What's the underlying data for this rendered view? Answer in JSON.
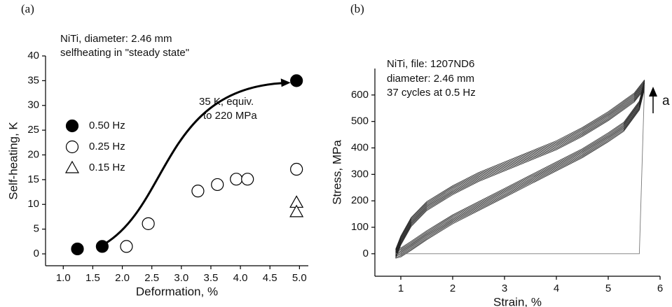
{
  "chart_data": [
    {
      "type": "scatter",
      "label": "(a)",
      "annotations": [
        "NiTi, diameter: 2.46 mm",
        "selfheating in \"steady state\"",
        "35 K, equiv.",
        "to 220 MPa"
      ],
      "x_label": "Deformation, %",
      "y_label": "Self-heating, K",
      "xlim": [
        0.7,
        5.15
      ],
      "ylim": [
        -2.4,
        40
      ],
      "xticks": [
        {
          "value": 1,
          "label": "1.0"
        },
        {
          "value": 1.5,
          "label": "1.5"
        },
        {
          "value": 2,
          "label": "2.0"
        },
        {
          "value": 2.5,
          "label": "2.5"
        },
        {
          "value": 3,
          "label": "3.0"
        },
        {
          "value": 3.5,
          "label": "3.5"
        },
        {
          "value": 4,
          "label": "4.0"
        },
        {
          "value": 4.5,
          "label": "4.5"
        },
        {
          "value": 5,
          "label": "5.0"
        }
      ],
      "yticks": [
        0,
        5,
        10,
        15,
        20,
        25,
        30,
        35,
        40
      ],
      "series": [
        {
          "name": "0.50 Hz",
          "marker": "circle-filled",
          "color": "#000",
          "x": [
            1.24,
            1.66,
            4.95
          ],
          "values": [
            1,
            1.5,
            35
          ]
        },
        {
          "name": "0.25 Hz",
          "marker": "circle-open",
          "color": "#000",
          "x": [
            2.07,
            2.44,
            3.28,
            3.61,
            3.93,
            4.12,
            4.95
          ],
          "values": [
            1.5,
            6.1,
            12.7,
            14,
            15.1,
            15.1,
            17.1
          ]
        },
        {
          "name": "0.15 Hz",
          "marker": "triangle-open",
          "color": "#000",
          "x": [
            4.95,
            4.95
          ],
          "values": [
            10.4,
            8.5
          ]
        }
      ]
    },
    {
      "type": "line",
      "label": "(b)",
      "annotations": [
        "NiTi, file: 1207ND6",
        "diameter: 2.46 mm",
        "37 cycles at 0.5 Hz",
        "a"
      ],
      "x_label": "Strain, %",
      "y_label": "Stress, MPa",
      "xlim": [
        0.5,
        6
      ],
      "ylim": [
        -85,
        700
      ],
      "xticks": [
        1,
        2,
        3,
        4,
        5,
        6
      ],
      "yticks": [
        0,
        100,
        200,
        300,
        400,
        500,
        600
      ],
      "series": [
        {
          "color": "#222",
          "x": [
            0.9,
            1.0,
            1.2,
            1.5,
            2,
            2.5,
            3,
            3.5,
            4,
            4.5,
            5,
            5.5,
            5.7,
            5.6,
            5.3,
            5,
            4.5,
            4,
            3.5,
            3,
            2.5,
            2,
            1.5,
            1.2,
            1,
            0.9
          ],
          "values": [
            0,
            50,
            120,
            180,
            240,
            290,
            330,
            370,
            410,
            460,
            520,
            590,
            640,
            560,
            480,
            440,
            380,
            330,
            280,
            230,
            180,
            130,
            70,
            30,
            5,
            0
          ]
        },
        {
          "color": "#777",
          "x": [
            5.7,
            5.6,
            0.9
          ],
          "values": [
            640,
            0,
            0
          ]
        }
      ]
    }
  ]
}
